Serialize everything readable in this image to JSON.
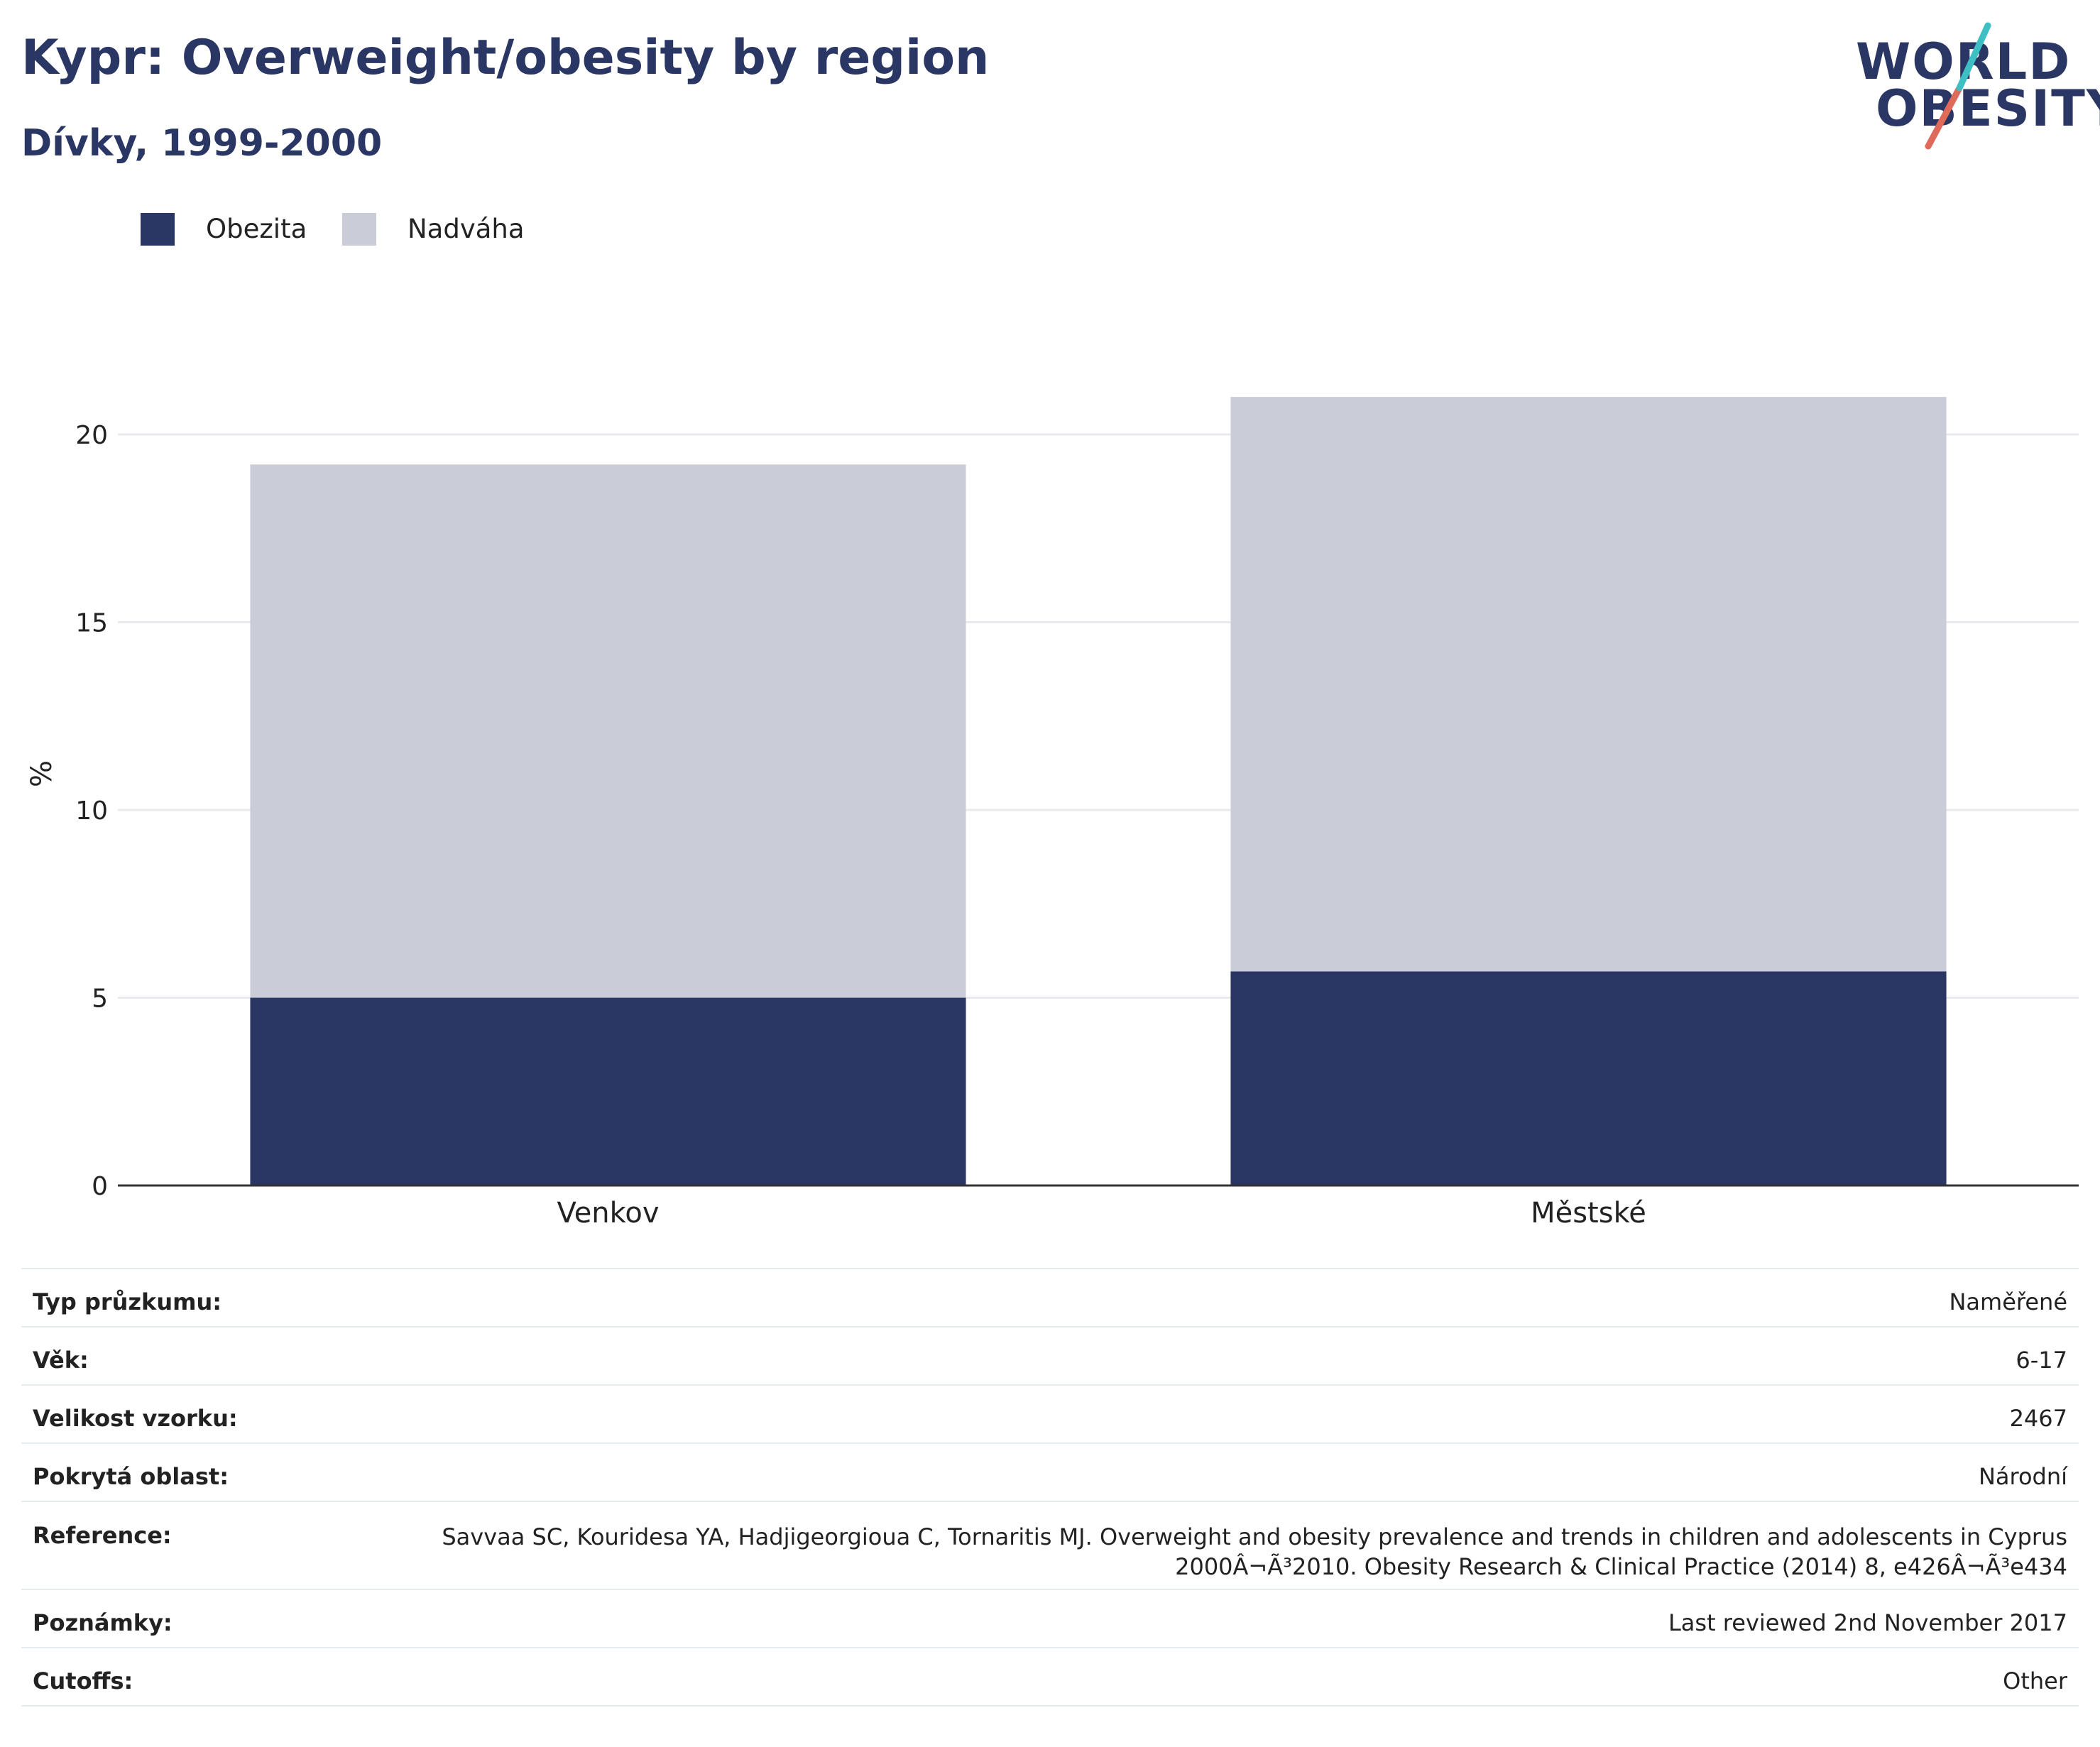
{
  "header": {
    "title": "Kypr: Overweight/obesity by region",
    "subtitle": "Dívky, 1999-2000"
  },
  "logo": {
    "line1": "WORLD",
    "line2": "OBESITY"
  },
  "legend": {
    "items": [
      {
        "label": "Obezita",
        "color": "#2a3663"
      },
      {
        "label": "Nadváha",
        "color": "#cacdd8"
      }
    ]
  },
  "chart_data": {
    "type": "bar",
    "stacked": true,
    "categories": [
      "Venkov",
      "Městské"
    ],
    "series": [
      {
        "name": "Obezita",
        "values": [
          5.0,
          5.7
        ],
        "color": "#2a3663"
      },
      {
        "name": "Nadváha",
        "values": [
          14.2,
          15.3
        ],
        "color": "#cacdd8"
      }
    ],
    "totals": [
      19.2,
      21.0
    ],
    "ylabel": "%",
    "ylim": [
      0,
      21
    ],
    "yticks": [
      "0",
      "5",
      "10",
      "15",
      "20"
    ],
    "ytick_values": [
      0,
      5,
      10,
      15,
      20
    ],
    "grid": true,
    "legend_position": "top-left"
  },
  "info": {
    "rows": [
      {
        "key": "Typ průzkumu:",
        "value": "Naměřené"
      },
      {
        "key": "Věk:",
        "value": "6-17"
      },
      {
        "key": "Velikost vzorku:",
        "value": "2467"
      },
      {
        "key": "Pokrytá oblast:",
        "value": "Národní"
      },
      {
        "key": "Reference:",
        "value": "Savvaa SC, Kouridesa YA, Hadjigeorgioua C, Tornaritis MJ. Overweight and obesity prevalence and trends in children and adolescents in Cyprus 2000Â¬Ã³2010. Obesity Research & Clinical Practice (2014) 8, e426Â¬Ã³e434"
      },
      {
        "key": "Poznámky:",
        "value": "Last reviewed 2nd November 2017"
      },
      {
        "key": "Cutoffs:",
        "value": "Other"
      }
    ]
  }
}
